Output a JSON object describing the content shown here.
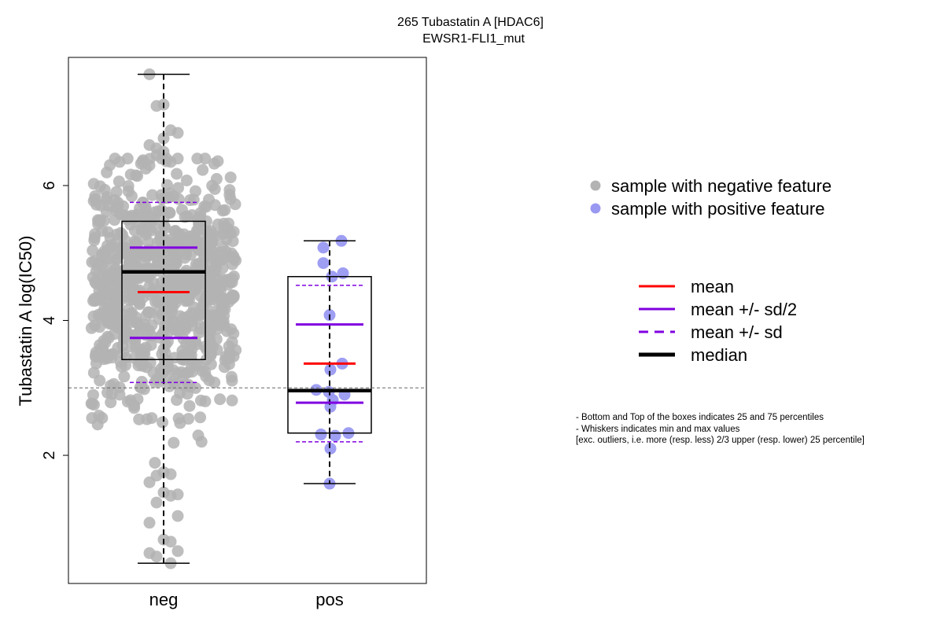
{
  "chart_data": {
    "type": "box",
    "title": "265 Tubastatin A [HDAC6]",
    "subtitle": "EWSR1-FLI1_mut",
    "ylabel": "Tubastatin A log(IC50)",
    "xlabel": "",
    "ylim": [
      0.1,
      7.9
    ],
    "yticks": [
      2,
      4,
      6
    ],
    "categories": [
      "neg",
      "pos"
    ],
    "reference_line": 3.0,
    "grid": false,
    "groups": [
      {
        "category": "neg",
        "q1": 3.42,
        "median": 4.72,
        "q3": 5.47,
        "whisker_low": 0.4,
        "whisker_high": 7.65,
        "mean": 4.42,
        "half_sd_low": 3.74,
        "half_sd_high": 5.08,
        "sd_low": 3.08,
        "sd_high": 5.75,
        "n": 850,
        "points_color": "#b3b3b3",
        "sample_points": [
          7.65,
          7.18,
          7.2,
          6.82,
          6.78,
          6.6,
          6.55,
          6.7,
          6.35,
          6.4,
          6.3,
          6.45,
          6.5,
          0.4,
          0.58,
          0.55,
          0.5,
          0.75,
          0.72,
          1.1,
          1.0,
          1.3,
          1.45,
          1.4,
          1.42,
          1.6,
          1.7,
          1.75,
          1.72
        ]
      },
      {
        "category": "pos",
        "q1": 2.33,
        "median": 2.96,
        "q3": 4.65,
        "whisker_low": 1.58,
        "whisker_high": 5.18,
        "mean": 3.36,
        "half_sd_low": 2.78,
        "half_sd_high": 3.94,
        "sd_low": 2.2,
        "sd_high": 4.52,
        "n": 18,
        "points_color": "#9999f2",
        "points": [
          5.18,
          5.08,
          4.85,
          4.7,
          4.65,
          4.08,
          3.36,
          3.27,
          2.97,
          2.94,
          2.9,
          2.82,
          2.72,
          2.33,
          2.31,
          2.29,
          2.1,
          1.58
        ]
      }
    ],
    "legend": {
      "placement": "right",
      "points": [
        {
          "label": "sample with negative feature",
          "color": "#b3b3b3"
        },
        {
          "label": "sample with positive feature",
          "color": "#9999f2"
        }
      ],
      "lines": [
        {
          "label": "mean",
          "color": "#ff0000",
          "style": "solid"
        },
        {
          "label": "mean +/- sd/2",
          "color": "#8000e0",
          "style": "solid"
        },
        {
          "label": "mean +/- sd",
          "color": "#8000e0",
          "style": "dashed"
        },
        {
          "label": "median",
          "color": "#000000",
          "style": "solid-thick"
        }
      ]
    },
    "notes": [
      "- Bottom and Top of the boxes indicates 25 and 75 percentiles",
      "- Whiskers indicates min and max values",
      "[exc. outliers, i.e. more (resp. less) 2/3 upper (resp. lower) 25 percentile]"
    ]
  }
}
